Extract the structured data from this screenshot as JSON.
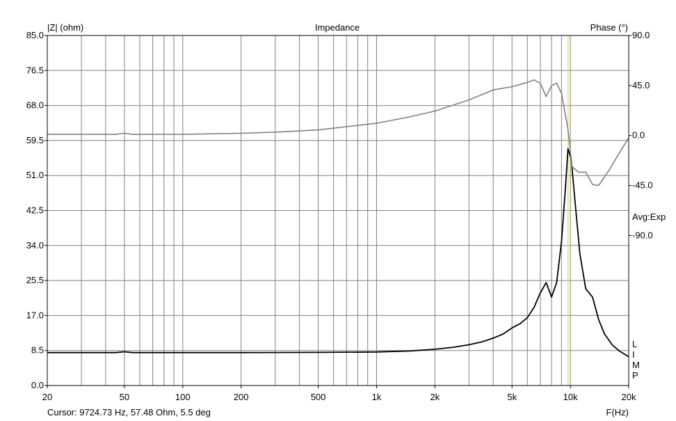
{
  "chart_data": {
    "type": "line",
    "title": "Impedance",
    "ylabel_left": "|Z| (ohm)",
    "ylabel_right": "Phase (°)",
    "xlabel": "F(Hz)",
    "x_scale": "log",
    "xlim": [
      20,
      20000
    ],
    "ylim_left": [
      0,
      85
    ],
    "ylim_right": [
      -225,
      90
    ],
    "x_ticks": [
      {
        "v": 20,
        "label": "20"
      },
      {
        "v": 50,
        "label": "50"
      },
      {
        "v": 100,
        "label": "100"
      },
      {
        "v": 200,
        "label": "200"
      },
      {
        "v": 500,
        "label": "500"
      },
      {
        "v": 1000,
        "label": "1k"
      },
      {
        "v": 2000,
        "label": "2k"
      },
      {
        "v": 5000,
        "label": "5k"
      },
      {
        "v": 10000,
        "label": "10k"
      },
      {
        "v": 20000,
        "label": "20k"
      }
    ],
    "y_left_ticks": [
      {
        "v": 85,
        "label": "85.0"
      },
      {
        "v": 76.5,
        "label": "76.5"
      },
      {
        "v": 68,
        "label": "68.0"
      },
      {
        "v": 59.5,
        "label": "59.5"
      },
      {
        "v": 51,
        "label": "51.0"
      },
      {
        "v": 42.5,
        "label": "42.5"
      },
      {
        "v": 34,
        "label": "34.0"
      },
      {
        "v": 25.5,
        "label": "25.5"
      },
      {
        "v": 17,
        "label": "17.0"
      },
      {
        "v": 8.5,
        "label": "8.5"
      },
      {
        "v": 0,
        "label": "0.0"
      }
    ],
    "y_right_ticks": [
      {
        "v": 90,
        "label": "90.0"
      },
      {
        "v": 45,
        "label": "45.0"
      },
      {
        "v": 0,
        "label": "0.0"
      },
      {
        "v": -45,
        "label": "-45.0"
      },
      {
        "v": -90,
        "label": "-90.0"
      }
    ],
    "right_annotation": "Avg:Exp",
    "legend_letters": [
      "L",
      "I",
      "M",
      "P"
    ],
    "cursor": {
      "freq": 9724.73,
      "color": "#e8e070"
    },
    "cursor_text": "Cursor: 9724.73 Hz, 57.48 Ohm, 5.5 deg",
    "series": [
      {
        "name": "Impedance",
        "axis": "left",
        "color": "#000000",
        "points": [
          [
            20,
            8.0
          ],
          [
            30,
            8.0
          ],
          [
            45,
            8.0
          ],
          [
            50,
            8.2
          ],
          [
            55,
            8.0
          ],
          [
            70,
            8.0
          ],
          [
            100,
            8.0
          ],
          [
            200,
            8.0
          ],
          [
            500,
            8.05
          ],
          [
            1000,
            8.15
          ],
          [
            1500,
            8.4
          ],
          [
            2000,
            8.8
          ],
          [
            2500,
            9.3
          ],
          [
            3000,
            9.9
          ],
          [
            3500,
            10.6
          ],
          [
            4000,
            11.5
          ],
          [
            4500,
            12.5
          ],
          [
            5000,
            14.0
          ],
          [
            5500,
            15.0
          ],
          [
            6000,
            16.5
          ],
          [
            6500,
            19.0
          ],
          [
            7000,
            22.5
          ],
          [
            7500,
            25.0
          ],
          [
            8000,
            21.5
          ],
          [
            8500,
            25.0
          ],
          [
            9000,
            35.0
          ],
          [
            9400,
            47.0
          ],
          [
            9724.73,
            57.5
          ],
          [
            10100,
            55.0
          ],
          [
            10600,
            44.0
          ],
          [
            11200,
            32.0
          ],
          [
            12000,
            23.5
          ],
          [
            13000,
            21.5
          ],
          [
            14000,
            16.0
          ],
          [
            15000,
            12.5
          ],
          [
            16500,
            9.8
          ],
          [
            18000,
            8.3
          ],
          [
            20000,
            7.0
          ]
        ]
      },
      {
        "name": "Phase",
        "axis": "right",
        "color": "#808080",
        "points": [
          [
            20,
            1.0
          ],
          [
            45,
            1.0
          ],
          [
            50,
            2.0
          ],
          [
            55,
            1.0
          ],
          [
            100,
            1.0
          ],
          [
            200,
            2.0
          ],
          [
            300,
            3.0
          ],
          [
            500,
            5.0
          ],
          [
            1000,
            11.0
          ],
          [
            1500,
            17.0
          ],
          [
            2000,
            22.0
          ],
          [
            3000,
            32.0
          ],
          [
            4000,
            41.0
          ],
          [
            5000,
            44.0
          ],
          [
            5800,
            47.0
          ],
          [
            6500,
            50.0
          ],
          [
            7000,
            47.0
          ],
          [
            7500,
            35.0
          ],
          [
            8000,
            45.0
          ],
          [
            8500,
            47.0
          ],
          [
            9000,
            38.0
          ],
          [
            9724.73,
            5.5
          ],
          [
            10200,
            -28.0
          ],
          [
            11000,
            -33.0
          ],
          [
            12000,
            -33.0
          ],
          [
            13000,
            -44.0
          ],
          [
            14000,
            -45.0
          ],
          [
            16000,
            -30.0
          ],
          [
            18000,
            -15.0
          ],
          [
            20000,
            -2.0
          ]
        ]
      }
    ]
  }
}
